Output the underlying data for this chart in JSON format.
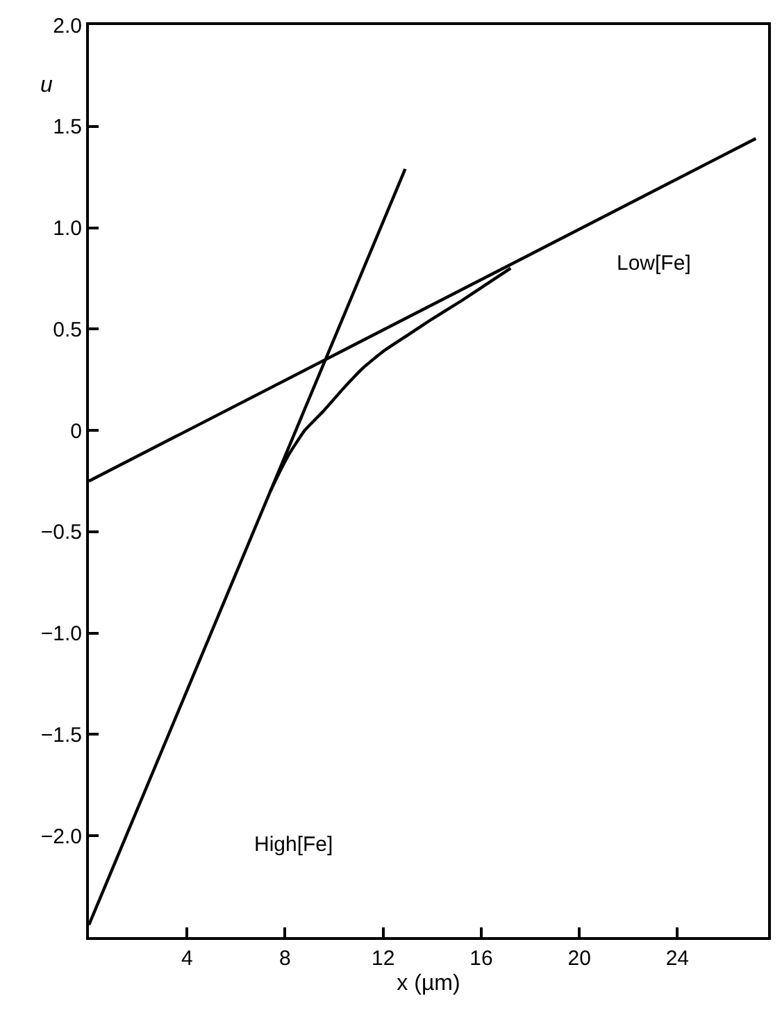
{
  "chart_data": {
    "type": "line",
    "xlabel": "x (µm)",
    "ylabel": "u",
    "xlim": [
      0,
      27.7
    ],
    "ylim": [
      -2.5,
      2.0
    ],
    "xticks": [
      4,
      8,
      12,
      16,
      20,
      24
    ],
    "yticks": [
      {
        "value": 2.0,
        "label": "2.0"
      },
      {
        "value": 1.5,
        "label": "1.5"
      },
      {
        "value": 1.0,
        "label": "1.0"
      },
      {
        "value": 0.5,
        "label": "0.5"
      },
      0,
      {
        "value": -0.5,
        "label": "−0.5"
      },
      {
        "value": -1.0,
        "label": "−1.0"
      },
      {
        "value": -1.5,
        "label": "−1.5"
      },
      {
        "value": -2.0,
        "label": "−2.0"
      }
    ],
    "marker": "none",
    "line_style": "solid",
    "series": [
      {
        "color": "#000000",
        "x": [
          0,
          27.2
        ],
        "values": [
          -0.25,
          1.44
        ]
      },
      {
        "color": "#000000",
        "x": [
          0,
          12.9
        ],
        "values": [
          -2.44,
          1.29
        ]
      },
      {
        "color": "#000000",
        "x": [
          7.4,
          7.8,
          8.2,
          8.8,
          9.6,
          10.4,
          11.2,
          12,
          13,
          14,
          15.2,
          16.2,
          17.2
        ],
        "values": [
          -0.3,
          -0.2,
          -0.11,
          0.0,
          0.1,
          0.21,
          0.31,
          0.39,
          0.47,
          0.55,
          0.64,
          0.72,
          0.8
        ]
      }
    ],
    "annotations": [
      "Low[Fe]",
      "High[Fe]"
    ]
  }
}
